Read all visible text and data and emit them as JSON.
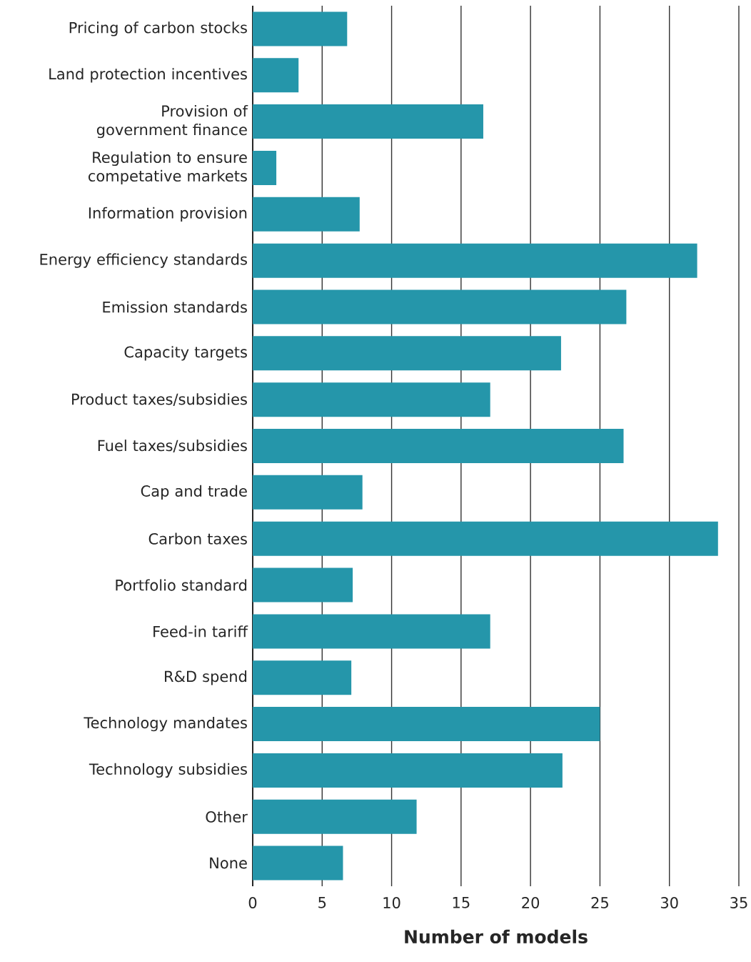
{
  "chart_data": {
    "type": "bar",
    "orientation": "horizontal",
    "xlabel": "Number of models",
    "categories": [
      "Pricing of carbon stocks",
      "Land protection incentives",
      "Provision of government finance",
      "Regulation to ensure competative markets",
      "Information provision",
      "Energy efficiency standards",
      "Emission standards",
      "Capacity targets",
      "Product taxes/subsidies",
      "Fuel taxes/subsidies",
      "Cap and trade",
      "Carbon taxes",
      "Portfolio standard",
      "Feed-in tariff",
      "R&D spend",
      "Technology mandates",
      "Technology subsidies",
      "Other",
      "None"
    ],
    "values": [
      6.8,
      3.3,
      16.6,
      1.7,
      7.7,
      32.0,
      26.9,
      22.2,
      17.1,
      26.7,
      7.9,
      33.5,
      7.2,
      17.1,
      7.1,
      25.0,
      22.3,
      11.8,
      6.5
    ],
    "color": "#2596aa",
    "xlim": [
      0,
      35
    ],
    "xticks": [
      0,
      5,
      10,
      15,
      20,
      25,
      30,
      35
    ],
    "grid": "x"
  }
}
